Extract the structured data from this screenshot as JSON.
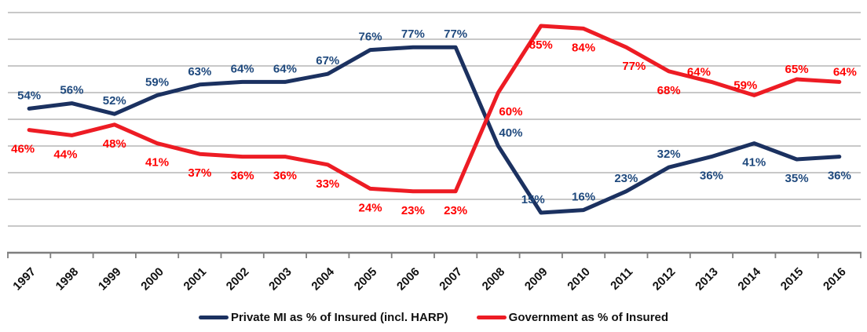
{
  "chart_data": {
    "type": "line",
    "title": "",
    "xlabel": "",
    "ylabel": "",
    "x": [
      "1997",
      "1998",
      "1999",
      "2000",
      "2001",
      "2002",
      "2003",
      "2004",
      "2005",
      "2006",
      "2007",
      "2008",
      "2009",
      "2010",
      "2011",
      "2012",
      "2013",
      "2014",
      "2015",
      "2016"
    ],
    "series": [
      {
        "name": "Private MI as % of Insured (incl. HARP)",
        "color": "#1b3160",
        "label_color": "#1f497d",
        "values": [
          54,
          56,
          52,
          59,
          63,
          64,
          64,
          67,
          76,
          77,
          77,
          40,
          15,
          16,
          23,
          32,
          36,
          41,
          35,
          36
        ],
        "label_side": [
          "above",
          "above",
          "above",
          "above",
          "above",
          "above",
          "above",
          "above",
          "above",
          "above",
          "above",
          "above",
          "above",
          "above",
          "above",
          "above",
          "below",
          "below",
          "below",
          "below"
        ],
        "label_dx": [
          0,
          0,
          0,
          0,
          0,
          0,
          0,
          0,
          0,
          0,
          0,
          16,
          -10,
          0,
          0,
          0,
          0,
          0,
          0,
          0
        ]
      },
      {
        "name": "Government as % of Insured",
        "color": "#ed1c24",
        "label_color": "#ff0000",
        "values": [
          46,
          44,
          48,
          41,
          37,
          36,
          36,
          33,
          24,
          23,
          23,
          60,
          85,
          84,
          77,
          68,
          64,
          59,
          65,
          64
        ],
        "label_side": [
          "below",
          "below",
          "below",
          "below",
          "below",
          "below",
          "below",
          "below",
          "below",
          "below",
          "below",
          "below",
          "below",
          "below",
          "below",
          "below",
          "above",
          "above",
          "above",
          "above"
        ],
        "label_dx": [
          -8,
          -8,
          0,
          0,
          0,
          0,
          0,
          0,
          0,
          0,
          0,
          16,
          0,
          0,
          10,
          0,
          -16,
          -11,
          0,
          7
        ]
      }
    ],
    "ylim": [
      0,
      90
    ],
    "grid_step": 10,
    "grid": true,
    "legend_position": "bottom",
    "grid_color": "#a6a6a6",
    "axis_color": "#7f7f7f",
    "tick_label_color": "#111111",
    "data_label_format": "percent"
  }
}
